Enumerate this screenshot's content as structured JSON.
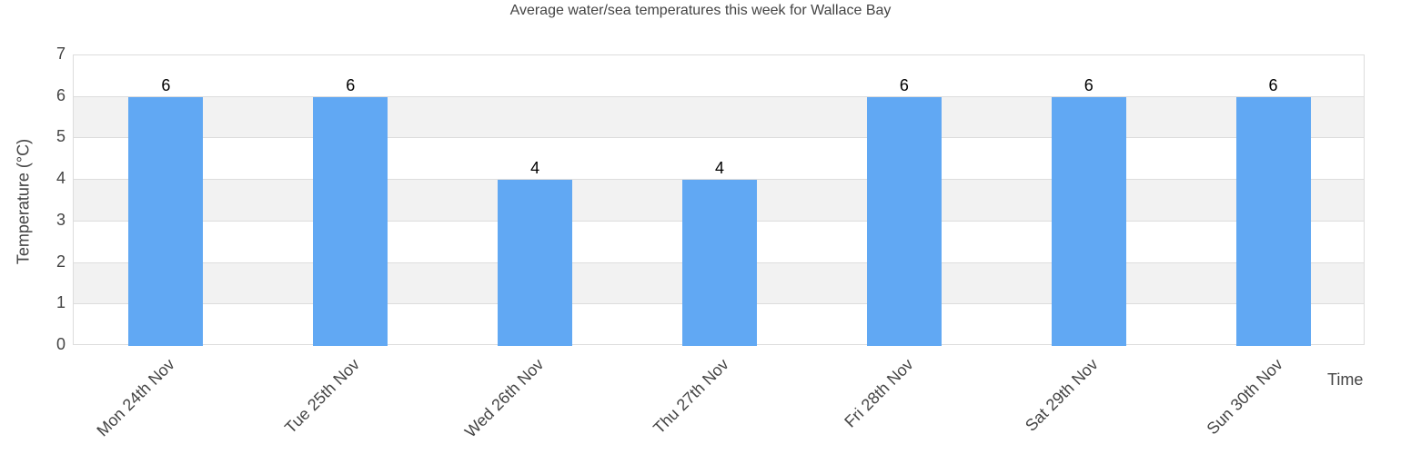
{
  "title": "Average water/sea temperatures this week for Wallace Bay",
  "colors": {
    "bar": "#61a8f3",
    "band": "#f2f2f2",
    "grid": "#dddddd"
  },
  "chart_data": {
    "type": "bar",
    "title": "Average water/sea temperatures this week for Wallace Bay",
    "xlabel": "Time",
    "ylabel": "Temperature (°C)",
    "categories": [
      "Mon 24th Nov",
      "Tue 25th Nov",
      "Wed 26th Nov",
      "Thu 27th Nov",
      "Fri 28th Nov",
      "Sat 29th Nov",
      "Sun 30th Nov"
    ],
    "values": [
      6,
      6,
      4,
      4,
      6,
      6,
      6
    ],
    "data_labels": [
      "6",
      "6",
      "4",
      "4",
      "6",
      "6",
      "6"
    ],
    "ylim": [
      0,
      7
    ],
    "yticks": [
      "0",
      "1",
      "2",
      "3",
      "4",
      "5",
      "6",
      "7"
    ],
    "grid": true,
    "alternating_bands": true,
    "legend": null
  }
}
